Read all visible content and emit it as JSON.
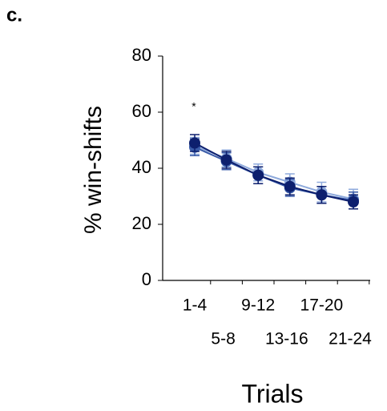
{
  "panel_label": "c.",
  "chart_data": {
    "type": "line",
    "y_label": "% win-shifts",
    "x_label": "Trials",
    "annotation": "*",
    "categories": [
      "1-4",
      "5-8",
      "9-12",
      "13-16",
      "17-20",
      "21-24"
    ],
    "series": [
      {
        "color": "#8faadc",
        "values": [
          48,
          43.5,
          38.5,
          35,
          31.5,
          29
        ],
        "errors": [
          3,
          3,
          3,
          3,
          3.5,
          3.5
        ]
      },
      {
        "color": "#3a5ba8",
        "values": [
          47.5,
          42.5,
          37.5,
          33,
          30.5,
          28.5
        ],
        "errors": [
          3,
          3,
          3,
          3,
          3,
          3
        ]
      },
      {
        "color": "#0d1f6e",
        "values": [
          49,
          43,
          37.5,
          33.5,
          30.5,
          28
        ],
        "errors": [
          3,
          3,
          3,
          3,
          3,
          2.5
        ]
      }
    ],
    "ylim": [
      0,
      80
    ],
    "yticks": [
      0,
      20,
      40,
      60,
      80
    ]
  }
}
